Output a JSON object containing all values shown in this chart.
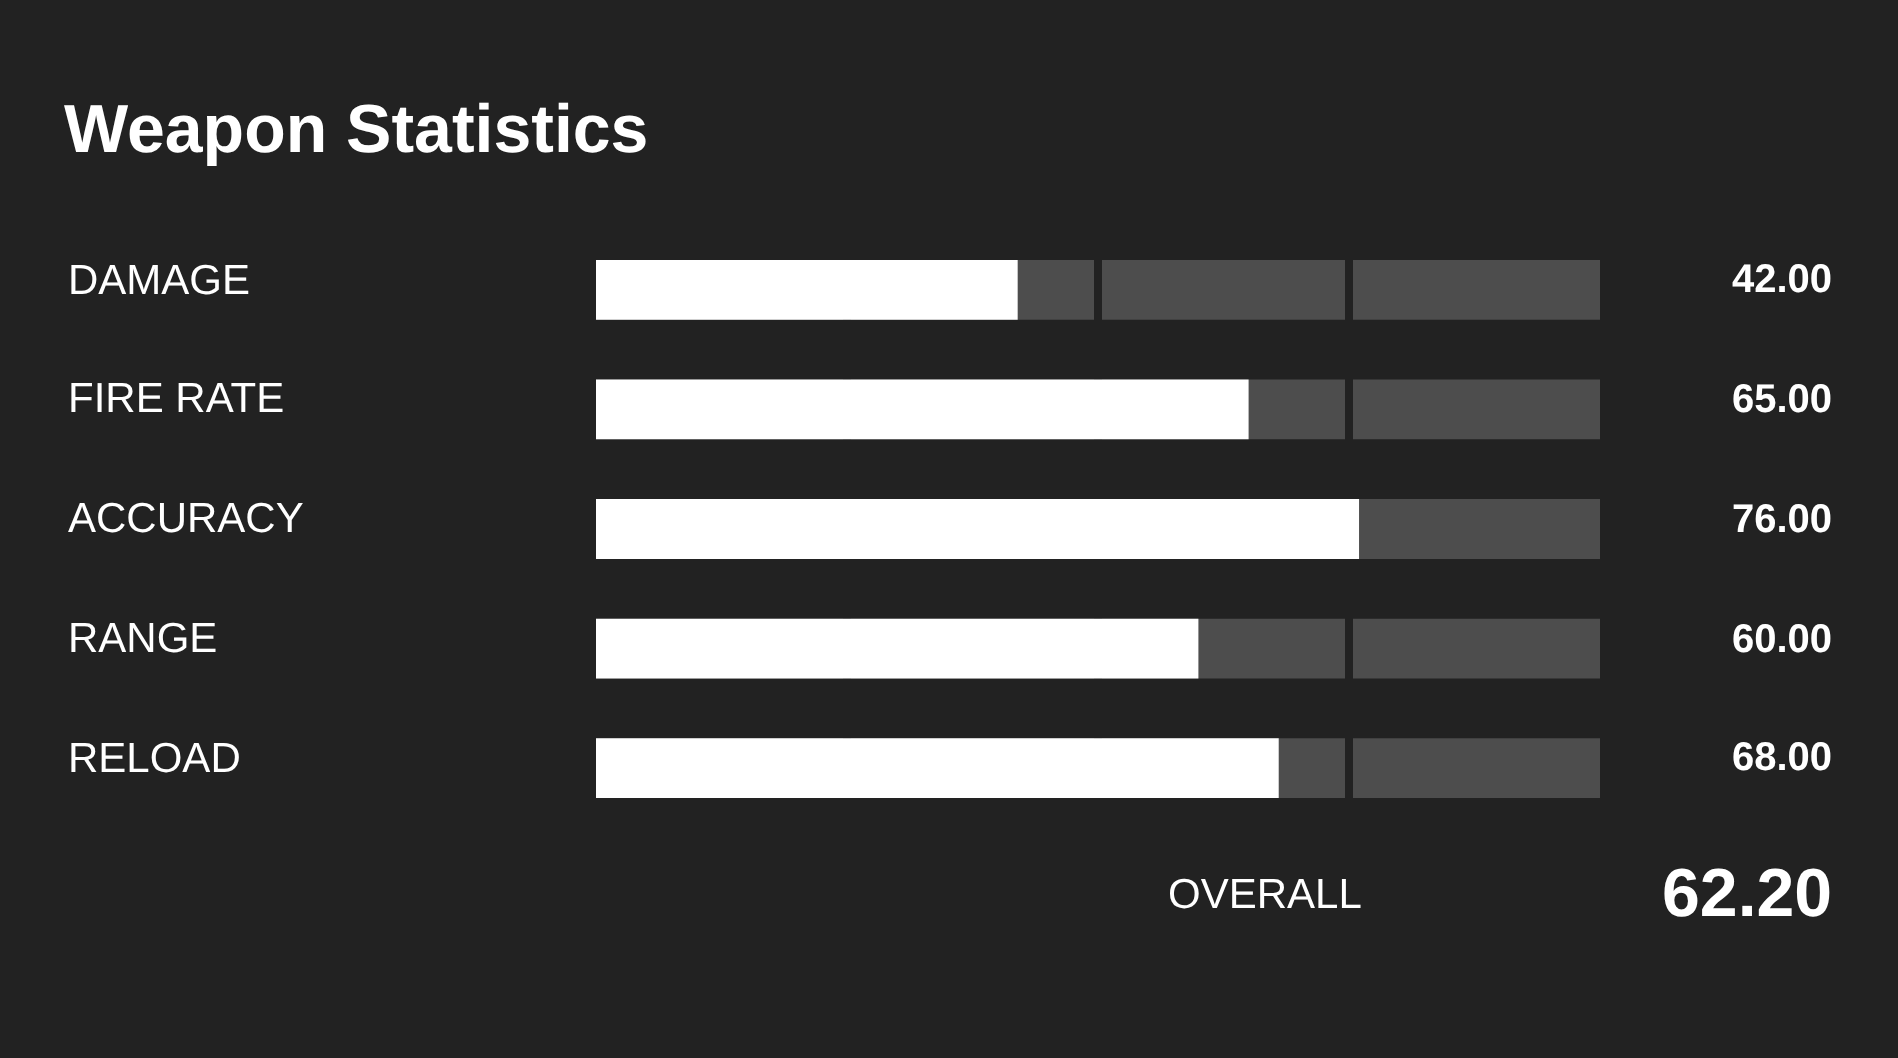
{
  "chart_data": {
    "type": "bar",
    "orientation": "horizontal",
    "title": "Weapon Statistics",
    "categories": [
      "DAMAGE",
      "FIRE RATE",
      "ACCURACY",
      "RANGE",
      "RELOAD"
    ],
    "values": [
      42,
      65,
      76,
      60,
      68
    ],
    "color": "#ffffff",
    "value_labels": [
      "42.00",
      "65.00",
      "76.00",
      "60.00",
      "68.00"
    ],
    "xlim": [
      0,
      100
    ],
    "xticks": [
      {
        "value": 25,
        "label": null
      },
      {
        "value": 50,
        "label": null
      },
      {
        "value": 75,
        "label": null
      }
    ],
    "grid": "x",
    "annotations": [
      "OVERALL",
      "62.20"
    ]
  }
}
